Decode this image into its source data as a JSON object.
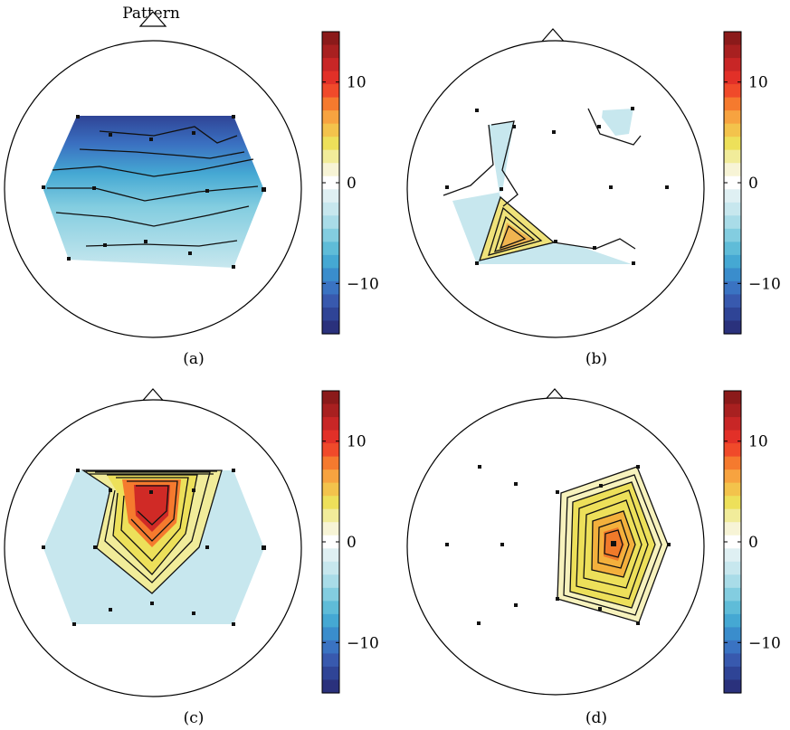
{
  "figure": {
    "pattern_label": "Pattern",
    "colorbar": {
      "range": [
        -15,
        15
      ],
      "tick_values": [
        10,
        0,
        -10
      ],
      "tick_labels": [
        "10",
        "0",
        "−10"
      ],
      "colors_top_to_bottom": [
        "#8b1a1a",
        "#a82020",
        "#c82626",
        "#e23028",
        "#f04a2a",
        "#f57a2e",
        "#f7a340",
        "#f3c34c",
        "#ede05a",
        "#f1ec9a",
        "#f7f4d6",
        "#ffffff",
        "#dff0f3",
        "#c7e7ee",
        "#a9dce8",
        "#83cde0",
        "#5fbcd8",
        "#45a8d3",
        "#3a8dcc",
        "#3a73c2",
        "#3859ae",
        "#2f4496",
        "#2a317c"
      ]
    },
    "panels": [
      {
        "caption": "(a)"
      },
      {
        "caption": "(b)"
      },
      {
        "caption": "(c)"
      },
      {
        "caption": "(d)"
      }
    ]
  }
}
